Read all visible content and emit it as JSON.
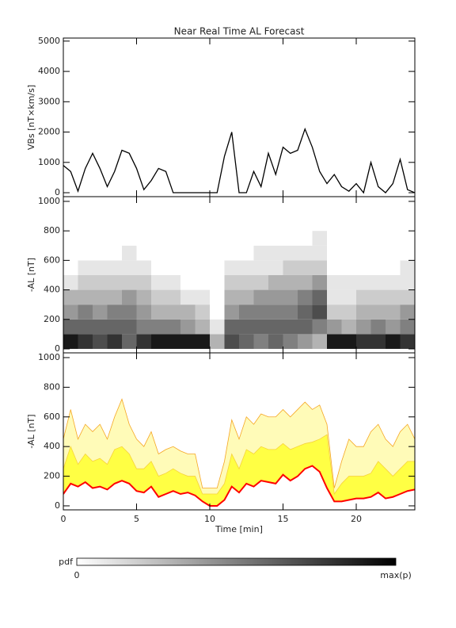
{
  "chart_data": [
    {
      "type": "line",
      "title": "Near Real Time AL Forecast",
      "ylabel": "VBs [nT×km/s]",
      "color": "#000000",
      "xlim": [
        0,
        24
      ],
      "xticks": [
        0,
        5,
        10,
        15,
        20
      ],
      "ylim": [
        -130,
        5100
      ],
      "yticks": [
        0,
        1000,
        2000,
        3000,
        4000,
        5000
      ],
      "x": [
        0,
        0.5,
        1,
        1.5,
        2,
        2.5,
        3,
        3.5,
        4,
        4.5,
        5,
        5.5,
        6,
        6.5,
        7,
        7.5,
        8,
        8.5,
        9,
        9.5,
        10,
        10.5,
        11,
        11.5,
        12,
        12.5,
        13,
        13.5,
        14,
        14.5,
        15,
        15.5,
        16,
        16.5,
        17,
        17.5,
        18,
        18.5,
        19,
        19.5,
        20,
        20.5,
        21,
        21.5,
        22,
        22.5,
        23,
        23.5,
        24
      ],
      "values": [
        900,
        700,
        50,
        800,
        1300,
        800,
        200,
        700,
        1400,
        1300,
        800,
        100,
        400,
        800,
        700,
        0,
        0,
        0,
        0,
        0,
        0,
        0,
        1200,
        2000,
        0,
        0,
        700,
        200,
        1300,
        600,
        1500,
        1300,
        1400,
        2100,
        1500,
        700,
        300,
        600,
        200,
        50,
        300,
        0,
        1000,
        200,
        0,
        300,
        1100,
        100,
        0
      ]
    },
    {
      "type": "heatmap",
      "ylabel": "-AL [nT]",
      "xlim": [
        0,
        24
      ],
      "xticks": [
        0,
        5,
        10,
        15,
        20
      ],
      "ylim": [
        -27,
        1032
      ],
      "yticks": [
        0,
        200,
        400,
        600,
        800,
        1000
      ],
      "xbins": [
        0,
        1,
        2,
        3,
        4,
        5,
        6,
        7,
        8,
        9,
        10,
        11,
        12,
        13,
        14,
        15,
        16,
        17,
        18,
        19,
        20,
        21,
        22,
        23,
        24
      ],
      "ybins": [
        0,
        100,
        200,
        300,
        400,
        500,
        600,
        700,
        800,
        900,
        1000
      ],
      "z": [
        [
          0.9,
          0.6,
          0.4,
          0.3,
          0.1,
          0,
          0,
          0,
          0,
          0
        ],
        [
          0.8,
          0.6,
          0.5,
          0.3,
          0.2,
          0.1,
          0,
          0,
          0,
          0
        ],
        [
          0.7,
          0.6,
          0.4,
          0.3,
          0.2,
          0.1,
          0,
          0,
          0,
          0
        ],
        [
          0.8,
          0.6,
          0.5,
          0.3,
          0.2,
          0.1,
          0,
          0,
          0,
          0
        ],
        [
          0.6,
          0.6,
          0.5,
          0.4,
          0.2,
          0.1,
          0.1,
          0,
          0,
          0
        ],
        [
          0.8,
          0.5,
          0.4,
          0.3,
          0.2,
          0.1,
          0,
          0,
          0,
          0
        ],
        [
          0.9,
          0.5,
          0.3,
          0.2,
          0.1,
          0,
          0,
          0,
          0,
          0
        ],
        [
          0.9,
          0.5,
          0.3,
          0.2,
          0.1,
          0,
          0,
          0,
          0,
          0
        ],
        [
          0.9,
          0.4,
          0.3,
          0.1,
          0,
          0,
          0,
          0,
          0,
          0
        ],
        [
          0.9,
          0.3,
          0.2,
          0.1,
          0,
          0,
          0,
          0,
          0,
          0
        ],
        [
          0.3,
          0.1,
          0,
          0,
          0,
          0,
          0,
          0,
          0,
          0
        ],
        [
          0.7,
          0.6,
          0.4,
          0.3,
          0.2,
          0.1,
          0,
          0,
          0,
          0
        ],
        [
          0.6,
          0.6,
          0.5,
          0.3,
          0.2,
          0.1,
          0,
          0,
          0,
          0
        ],
        [
          0.5,
          0.6,
          0.5,
          0.4,
          0.2,
          0.1,
          0.1,
          0,
          0,
          0
        ],
        [
          0.6,
          0.6,
          0.5,
          0.4,
          0.3,
          0.1,
          0.1,
          0,
          0,
          0
        ],
        [
          0.5,
          0.6,
          0.5,
          0.4,
          0.3,
          0.2,
          0.1,
          0,
          0,
          0
        ],
        [
          0.4,
          0.6,
          0.6,
          0.5,
          0.3,
          0.2,
          0.1,
          0,
          0,
          0
        ],
        [
          0.3,
          0.5,
          0.7,
          0.6,
          0.4,
          0.2,
          0.1,
          0.1,
          0,
          0
        ],
        [
          0.9,
          0.4,
          0.2,
          0.1,
          0.1,
          0,
          0,
          0,
          0,
          0
        ],
        [
          0.9,
          0.3,
          0.2,
          0.1,
          0.1,
          0,
          0,
          0,
          0,
          0
        ],
        [
          0.8,
          0.4,
          0.3,
          0.2,
          0.1,
          0,
          0,
          0,
          0,
          0
        ],
        [
          0.8,
          0.5,
          0.3,
          0.2,
          0.1,
          0,
          0,
          0,
          0,
          0
        ],
        [
          0.9,
          0.4,
          0.3,
          0.2,
          0.1,
          0,
          0,
          0,
          0,
          0
        ],
        [
          0.8,
          0.5,
          0.4,
          0.2,
          0.1,
          0.1,
          0,
          0,
          0,
          0
        ]
      ]
    },
    {
      "type": "band",
      "ylabel": "-AL [nT]",
      "xlabel": "Time [min]",
      "xlim": [
        0,
        24
      ],
      "xticks": [
        0,
        5,
        10,
        15,
        20
      ],
      "ylim": [
        -27,
        1032
      ],
      "yticks": [
        0,
        200,
        400,
        600,
        800,
        1000
      ],
      "x": [
        0,
        0.5,
        1,
        1.5,
        2,
        2.5,
        3,
        3.5,
        4,
        4.5,
        5,
        5.5,
        6,
        6.5,
        7,
        7.5,
        8,
        8.5,
        9,
        9.5,
        10,
        10.5,
        11,
        11.5,
        12,
        12.5,
        13,
        13.5,
        14,
        14.5,
        15,
        15.5,
        16,
        16.5,
        17,
        17.5,
        18,
        18.5,
        19,
        19.5,
        20,
        20.5,
        21,
        21.5,
        22,
        22.5,
        23,
        23.5,
        24
      ],
      "series": [
        {
          "color": "#f5a623",
          "fill": "#fffbb8",
          "values": [
            450,
            650,
            450,
            550,
            500,
            550,
            450,
            600,
            720,
            550,
            450,
            400,
            500,
            350,
            380,
            400,
            370,
            350,
            350,
            120,
            120,
            120,
            300,
            580,
            450,
            600,
            550,
            620,
            600,
            600,
            650,
            600,
            650,
            700,
            650,
            680,
            550,
            120,
            300,
            450,
            400,
            400,
            500,
            550,
            450,
            400,
            500,
            550,
            450
          ]
        },
        {
          "color": "#f7d23a",
          "fill": "#ffff44",
          "values": [
            250,
            400,
            280,
            350,
            300,
            320,
            280,
            380,
            400,
            350,
            250,
            250,
            300,
            200,
            220,
            250,
            220,
            200,
            200,
            80,
            80,
            80,
            150,
            350,
            250,
            380,
            350,
            400,
            380,
            380,
            420,
            380,
            400,
            420,
            430,
            450,
            480,
            80,
            150,
            200,
            200,
            200,
            220,
            300,
            250,
            200,
            250,
            300,
            300
          ]
        },
        {
          "color": "#ff0000",
          "values": [
            80,
            150,
            130,
            160,
            120,
            130,
            110,
            150,
            170,
            150,
            100,
            90,
            130,
            60,
            80,
            100,
            80,
            90,
            70,
            30,
            0,
            0,
            40,
            130,
            90,
            150,
            130,
            170,
            160,
            150,
            210,
            170,
            200,
            250,
            270,
            230,
            120,
            30,
            30,
            40,
            50,
            50,
            60,
            90,
            50,
            60,
            80,
            100,
            110
          ]
        }
      ]
    }
  ],
  "colorbar": {
    "label": "pdf",
    "min_label": "0",
    "max_label": "max(p)"
  }
}
